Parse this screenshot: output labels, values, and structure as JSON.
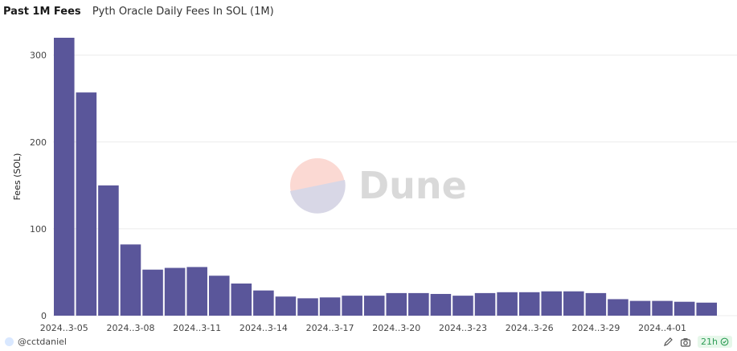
{
  "header": {
    "query_name": "Past 1M Fees",
    "chart_title": "Pyth Oracle Daily Fees In SOL (1M)"
  },
  "watermark": {
    "text": "Dune"
  },
  "footer": {
    "owner": "@cctdaniel",
    "refresh_age": "21h",
    "icons": [
      "edit-icon",
      "camera-icon",
      "check-circle-icon"
    ]
  },
  "colors": {
    "bar": "#5a569a",
    "grid": "#ececec",
    "axis_text": "#444444"
  },
  "chart_data": {
    "type": "bar",
    "ylabel": "Fees (SOL)",
    "xlabel": "",
    "ylim": [
      0,
      320
    ],
    "yticks": [
      0,
      100,
      200,
      300
    ],
    "grid": true,
    "categories": [
      "2024..3-05",
      "2024..3-06",
      "2024..3-07",
      "2024..3-08",
      "2024..3-09",
      "2024..3-10",
      "2024..3-11",
      "2024..3-12",
      "2024..3-13",
      "2024..3-14",
      "2024..3-15",
      "2024..3-16",
      "2024..3-17",
      "2024..3-18",
      "2024..3-19",
      "2024..3-20",
      "2024..3-21",
      "2024..3-22",
      "2024..3-23",
      "2024..3-24",
      "2024..3-25",
      "2024..3-26",
      "2024..3-27",
      "2024..3-28",
      "2024..3-29",
      "2024..3-30",
      "2024..3-31",
      "2024..4-01",
      "2024..4-02",
      "2024..4-03"
    ],
    "xtick_labels": [
      "2024..3-05",
      "2024..3-08",
      "2024..3-11",
      "2024..3-14",
      "2024..3-17",
      "2024..3-20",
      "2024..3-23",
      "2024..3-26",
      "2024..3-29",
      "2024..4-01"
    ],
    "values": [
      320,
      257,
      150,
      82,
      53,
      55,
      56,
      46,
      37,
      29,
      22,
      20,
      21,
      23,
      23,
      26,
      26,
      25,
      23,
      26,
      27,
      27,
      28,
      28,
      26,
      19,
      17,
      17,
      16,
      15
    ]
  }
}
